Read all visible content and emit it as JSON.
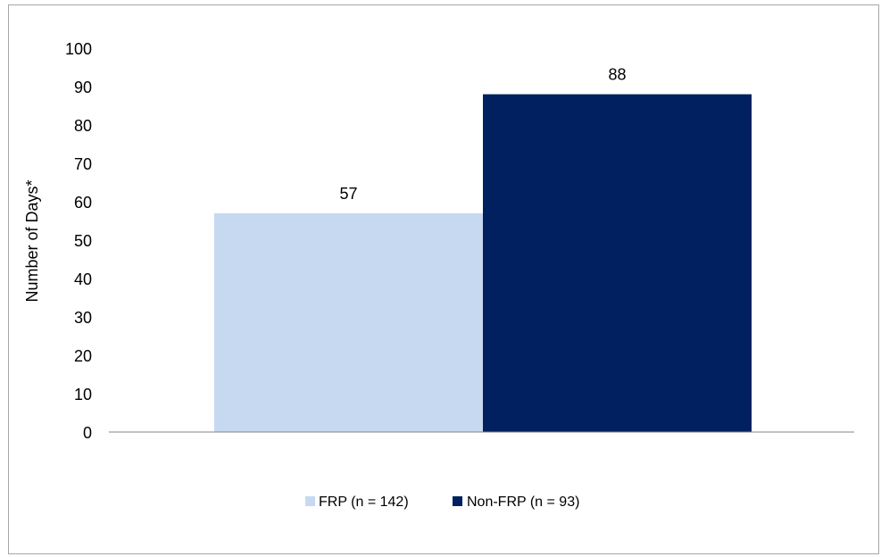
{
  "chart_data": {
    "type": "bar",
    "title": "",
    "xlabel": "",
    "ylabel": "Number of Days*",
    "ylim": [
      0,
      100
    ],
    "yticks": [
      0,
      10,
      20,
      30,
      40,
      50,
      60,
      70,
      80,
      90,
      100
    ],
    "grid": false,
    "legend_position": "bottom",
    "series": [
      {
        "name": "FRP (n = 142)",
        "value": 57,
        "label": "57",
        "color": "#c6d9f1"
      },
      {
        "name": "Non-FRP (n = 93)",
        "value": 88,
        "label": "88",
        "color": "#002060"
      }
    ]
  }
}
